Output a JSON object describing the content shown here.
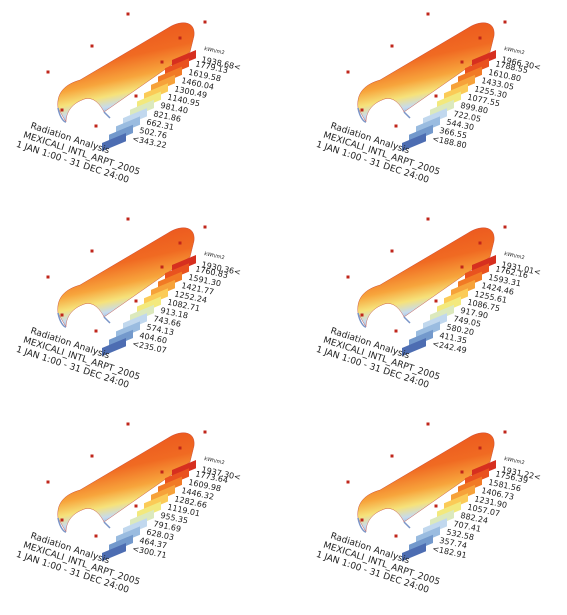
{
  "panels": [
    {
      "title": "Radiation Analysis",
      "location": "MEXICALI_INTL_ARPT_2005",
      "period": "1 JAN 1:00 - 31 DEC 24:00",
      "legend": {
        "unit": "kWh/m2",
        "labels": [
          "1938.68<",
          "1779.13",
          "1619.58",
          "1460.04",
          "1300.49",
          "1140.95",
          "981.40",
          "821.86",
          "662.31",
          "502.76",
          "<343.22"
        ]
      }
    },
    {
      "title": "Radiation Analysis",
      "location": "MEXICALI_INTL_ARPT_2005",
      "period": "1 JAN 1:00 - 31 DEC 24:00",
      "legend": {
        "unit": "kWh/m2",
        "labels": [
          "1966.30<",
          "1788.55",
          "1610.80",
          "1433.05",
          "1255.30",
          "1077.55",
          "899.80",
          "722.05",
          "544.30",
          "366.55",
          "<188.80"
        ]
      }
    },
    {
      "title": "Radiation Analysis",
      "location": "MEXICALI_INTL_ARPT_2005",
      "period": "1 JAN 1:00 - 31 DEC 24:00",
      "legend": {
        "unit": "kWh/m2",
        "labels": [
          "1930.36<",
          "1760.83",
          "1591.30",
          "1421.77",
          "1252.24",
          "1082.71",
          "913.18",
          "743.66",
          "574.13",
          "404.60",
          "<235.07"
        ]
      }
    },
    {
      "title": "Radiation Analysis",
      "location": "MEXICALI_INTL_ARPT_2005",
      "period": "1 JAN 1:00 - 31 DEC 24:00",
      "legend": {
        "unit": "kWh/m2",
        "labels": [
          "1931.01<",
          "1762.16",
          "1593.31",
          "1424.46",
          "1255.61",
          "1086.75",
          "917.90",
          "749.05",
          "580.20",
          "411.35",
          "<242.49"
        ]
      }
    },
    {
      "title": "Radiation Analysis",
      "location": "MEXICALI_INTL_ARPT_2005",
      "period": "1 JAN 1:00 - 31 DEC 24:00",
      "legend": {
        "unit": "kWh/m2",
        "labels": [
          "1937.30<",
          "1773.64",
          "1609.98",
          "1446.32",
          "1282.66",
          "1119.01",
          "955.35",
          "791.69",
          "628.03",
          "464.37",
          "<300.71"
        ]
      }
    },
    {
      "title": "Radiation Analysis",
      "location": "MEXICALI_INTL_ARPT_2005",
      "period": "1 JAN 1:00 - 31 DEC 24:00",
      "legend": {
        "unit": "kWh/m2",
        "labels": [
          "1931.22<",
          "1756.39",
          "1581.56",
          "1406.73",
          "1231.90",
          "1057.07",
          "882.24",
          "707.41",
          "532.58",
          "357.74",
          "<182.91"
        ]
      }
    }
  ]
}
